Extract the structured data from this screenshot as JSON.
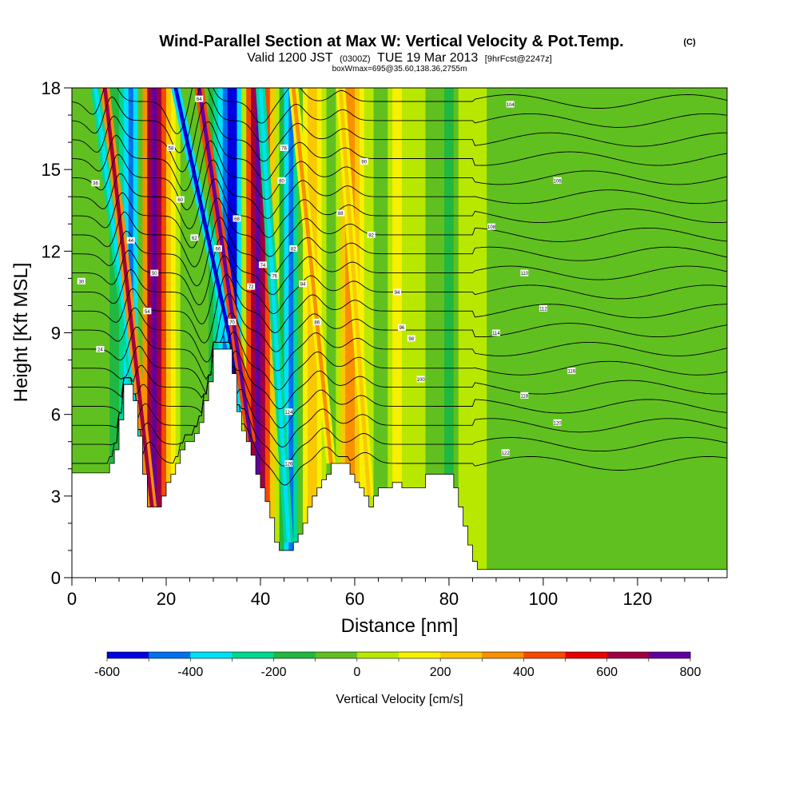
{
  "chart_data": {
    "type": "heatmap",
    "title": {
      "main": "Wind-Parallel Section at Max W: Vertical Velocity & Pot.Temp.",
      "copyright": "(C)"
    },
    "subtitle": {
      "valid_part1": "Valid 1200 JST",
      "valid_z": "(0300Z)",
      "valid_part2": "TUE 19 Mar 2013",
      "forecast": "[9hrFcst@2247z]"
    },
    "box_info": "boxWmax=695@35.60,138.36,2755m",
    "xlabel": "Distance [nm]",
    "ylabel": "Height [Kft MSL]",
    "xlim": [
      0,
      139
    ],
    "ylim": [
      0,
      18
    ],
    "x_ticks": [
      "0",
      "20",
      "40",
      "60",
      "80",
      "100",
      "120"
    ],
    "y_ticks": [
      "0",
      "3",
      "6",
      "9",
      "12",
      "15",
      "18"
    ],
    "colorbar": {
      "label": "Vertical Velocity [cm/s]",
      "ticks": [
        "-600",
        "-400",
        "-200",
        "0",
        "200",
        "400",
        "600",
        "800"
      ],
      "bounds": [
        -600,
        -500,
        -400,
        -300,
        -200,
        -100,
        0,
        100,
        200,
        300,
        400,
        500,
        600,
        700,
        800
      ],
      "colors": [
        "#0000e0",
        "#0070f0",
        "#00e0f8",
        "#00d890",
        "#20b840",
        "#60c020",
        "#b8e800",
        "#f8f000",
        "#f8c800",
        "#f89000",
        "#f84800",
        "#e80000",
        "#a00040",
        "#6000a0"
      ]
    },
    "columns": [
      {
        "x": 0,
        "terrain": 3.85,
        "w": -100
      },
      {
        "x": 2,
        "terrain": 3.85,
        "w": -100
      },
      {
        "x": 4,
        "terrain": 3.85,
        "w": -100
      },
      {
        "x": 6,
        "terrain": 3.85,
        "w": -100
      },
      {
        "x": 8,
        "terrain": 4.2,
        "w": -200
      },
      {
        "x": 9,
        "terrain": 4.7,
        "w": -200
      },
      {
        "x": 10,
        "terrain": 5.8,
        "w": -300
      },
      {
        "x": 11,
        "terrain": 7.1,
        "w": -400
      },
      {
        "x": 12,
        "terrain": 7.1,
        "w": -500
      },
      {
        "x": 13,
        "terrain": 6.5,
        "w": -400
      },
      {
        "x": 14,
        "terrain": 5.2,
        "w": -100
      },
      {
        "x": 15,
        "terrain": 3.8,
        "w": 300
      },
      {
        "x": 16,
        "terrain": 2.6,
        "w": 600
      },
      {
        "x": 17,
        "terrain": 2.6,
        "w": 700
      },
      {
        "x": 18,
        "terrain": 2.6,
        "w": 600
      },
      {
        "x": 19,
        "terrain": 3.0,
        "w": 400
      },
      {
        "x": 20,
        "terrain": 3.5,
        "w": 200
      },
      {
        "x": 21,
        "terrain": 3.8,
        "w": 100
      },
      {
        "x": 22,
        "terrain": 4.2,
        "w": 0
      },
      {
        "x": 23,
        "terrain": 4.7,
        "w": -100
      },
      {
        "x": 24,
        "terrain": 5.0,
        "w": -100
      },
      {
        "x": 25,
        "terrain": 5.0,
        "w": -100
      },
      {
        "x": 26,
        "terrain": 5.3,
        "w": -100
      },
      {
        "x": 27,
        "terrain": 5.7,
        "w": -100
      },
      {
        "x": 28,
        "terrain": 6.5,
        "w": -100
      },
      {
        "x": 29,
        "terrain": 7.2,
        "w": -200
      },
      {
        "x": 30,
        "terrain": 8.4,
        "w": -300
      },
      {
        "x": 31,
        "terrain": 8.4,
        "w": -400
      },
      {
        "x": 32,
        "terrain": 8.4,
        "w": -500
      },
      {
        "x": 33,
        "terrain": 8.4,
        "w": -600
      },
      {
        "x": 34,
        "terrain": 7.5,
        "w": -600
      },
      {
        "x": 35,
        "terrain": 6.1,
        "w": -400
      },
      {
        "x": 36,
        "terrain": 5.4,
        "w": 0
      },
      {
        "x": 37,
        "terrain": 5.0,
        "w": 400
      },
      {
        "x": 38,
        "terrain": 4.5,
        "w": 600
      },
      {
        "x": 39,
        "terrain": 3.8,
        "w": 700
      },
      {
        "x": 40,
        "terrain": 3.3,
        "w": 600
      },
      {
        "x": 41,
        "terrain": 2.8,
        "w": 400
      },
      {
        "x": 42,
        "terrain": 2.2,
        "w": 200
      },
      {
        "x": 43,
        "terrain": 1.3,
        "w": 0
      },
      {
        "x": 44,
        "terrain": 1.0,
        "w": -200
      },
      {
        "x": 45,
        "terrain": 1.0,
        "w": -400
      },
      {
        "x": 46,
        "terrain": 1.0,
        "w": -500
      },
      {
        "x": 47,
        "terrain": 1.3,
        "w": -300
      },
      {
        "x": 48,
        "terrain": 1.6,
        "w": -100
      },
      {
        "x": 49,
        "terrain": 2.0,
        "w": 100
      },
      {
        "x": 50,
        "terrain": 2.6,
        "w": 200
      },
      {
        "x": 51,
        "terrain": 3.0,
        "w": 200
      },
      {
        "x": 52,
        "terrain": 3.3,
        "w": 100
      },
      {
        "x": 53,
        "terrain": 3.6,
        "w": 0
      },
      {
        "x": 54,
        "terrain": 3.8,
        "w": -100
      },
      {
        "x": 55,
        "terrain": 4.2,
        "w": -100
      },
      {
        "x": 56,
        "terrain": 4.2,
        "w": 0
      },
      {
        "x": 57,
        "terrain": 4.2,
        "w": 200
      },
      {
        "x": 58,
        "terrain": 4.2,
        "w": 300
      },
      {
        "x": 59,
        "terrain": 3.8,
        "w": 300
      },
      {
        "x": 60,
        "terrain": 3.5,
        "w": 200
      },
      {
        "x": 61,
        "terrain": 3.3,
        "w": 100
      },
      {
        "x": 62,
        "terrain": 3.0,
        "w": 0
      },
      {
        "x": 63,
        "terrain": 2.6,
        "w": 0
      },
      {
        "x": 64,
        "terrain": 3.0,
        "w": -100
      },
      {
        "x": 65,
        "terrain": 3.3,
        "w": -100
      },
      {
        "x": 66,
        "terrain": 3.3,
        "w": -100
      },
      {
        "x": 67,
        "terrain": 3.3,
        "w": 0
      },
      {
        "x": 68,
        "terrain": 3.5,
        "w": 100
      },
      {
        "x": 69,
        "terrain": 3.5,
        "w": 100
      },
      {
        "x": 70,
        "terrain": 3.3,
        "w": 0
      },
      {
        "x": 72,
        "terrain": 3.3,
        "w": 0
      },
      {
        "x": 74,
        "terrain": 3.3,
        "w": 0
      },
      {
        "x": 75,
        "terrain": 3.8,
        "w": -100
      },
      {
        "x": 77,
        "terrain": 3.8,
        "w": -100
      },
      {
        "x": 79,
        "terrain": 3.8,
        "w": -200
      },
      {
        "x": 80,
        "terrain": 3.8,
        "w": -200
      },
      {
        "x": 81,
        "terrain": 3.3,
        "w": -100
      },
      {
        "x": 82,
        "terrain": 2.6,
        "w": 0
      },
      {
        "x": 83,
        "terrain": 1.9,
        "w": 0
      },
      {
        "x": 84,
        "terrain": 1.2,
        "w": 0
      },
      {
        "x": 85,
        "terrain": 0.6,
        "w": 0
      },
      {
        "x": 86,
        "terrain": 0.3,
        "w": 0
      },
      {
        "x": 88,
        "terrain": 0.3,
        "w": -100
      },
      {
        "x": 90,
        "terrain": 0.3,
        "w": -100
      },
      {
        "x": 92,
        "terrain": 0.3,
        "w": -100
      },
      {
        "x": 94,
        "terrain": 0.3,
        "w": -100
      },
      {
        "x": 96,
        "terrain": 0.3,
        "w": -100
      },
      {
        "x": 98,
        "terrain": 0.3,
        "w": -100
      },
      {
        "x": 100,
        "terrain": 0.3,
        "w": -100
      },
      {
        "x": 102,
        "terrain": 0.3,
        "w": -100
      },
      {
        "x": 104,
        "terrain": 0.3,
        "w": -100
      },
      {
        "x": 106,
        "terrain": 0.3,
        "w": -100
      },
      {
        "x": 108,
        "terrain": 0.3,
        "w": -100
      },
      {
        "x": 110,
        "terrain": 0.3,
        "w": -100
      },
      {
        "x": 112,
        "terrain": 0.3,
        "w": -100
      },
      {
        "x": 114,
        "terrain": 0.3,
        "w": -100
      },
      {
        "x": 116,
        "terrain": 0.3,
        "w": -100
      },
      {
        "x": 118,
        "terrain": 0.3,
        "w": -100
      },
      {
        "x": 120,
        "terrain": 0.3,
        "w": -100
      },
      {
        "x": 122,
        "terrain": 0.3,
        "w": -100
      },
      {
        "x": 124,
        "terrain": 0.3,
        "w": -100
      },
      {
        "x": 126,
        "terrain": 0.3,
        "w": -100
      },
      {
        "x": 128,
        "terrain": 0.3,
        "w": -100
      },
      {
        "x": 130,
        "terrain": 0.3,
        "w": -100
      },
      {
        "x": 132,
        "terrain": 0.3,
        "w": -100
      },
      {
        "x": 134,
        "terrain": 0.3,
        "w": -100
      },
      {
        "x": 136,
        "terrain": 0.3,
        "w": -100
      },
      {
        "x": 138,
        "terrain": 0.3,
        "w": -100
      }
    ],
    "updraft_bands": [
      {
        "x_base": 15.5,
        "x_top": 5.0,
        "w": -400
      },
      {
        "x_base": 17.0,
        "x_top": 7.0,
        "w": 600
      },
      {
        "x_base": 34.0,
        "x_top": 22.0,
        "w": -600
      },
      {
        "x_base": 38.0,
        "x_top": 27.0,
        "w": 700
      },
      {
        "x_base": 46.0,
        "x_top": 40.0,
        "w": -400
      },
      {
        "x_base": 55.0,
        "x_top": 47.0,
        "w": 300
      },
      {
        "x_base": 63.0,
        "x_top": 57.0,
        "w": 200
      }
    ],
    "isentropes": [
      {
        "base": 4.2
      },
      {
        "base": 4.9
      },
      {
        "base": 5.6
      },
      {
        "base": 6.3
      },
      {
        "base": 7.0
      },
      {
        "base": 7.7
      },
      {
        "base": 8.4
      },
      {
        "base": 9.1
      },
      {
        "base": 9.8
      },
      {
        "base": 10.5
      },
      {
        "base": 11.2
      },
      {
        "base": 11.9
      },
      {
        "base": 12.6
      },
      {
        "base": 13.3
      },
      {
        "base": 14.0
      },
      {
        "base": 14.7
      },
      {
        "base": 15.4
      },
      {
        "base": 16.1
      },
      {
        "base": 16.8
      },
      {
        "base": 17.5
      }
    ],
    "contour_labels": [
      {
        "x": 6,
        "y": 8.4,
        "text": "24"
      },
      {
        "x": 2,
        "y": 10.9,
        "text": "30"
      },
      {
        "x": 5,
        "y": 14.5,
        "text": "36"
      },
      {
        "x": 12.5,
        "y": 12.4,
        "text": "44"
      },
      {
        "x": 17.5,
        "y": 11.2,
        "text": "50"
      },
      {
        "x": 16,
        "y": 9.8,
        "text": "54"
      },
      {
        "x": 21,
        "y": 15.8,
        "text": "58"
      },
      {
        "x": 23,
        "y": 13.9,
        "text": "60"
      },
      {
        "x": 26,
        "y": 12.5,
        "text": "62"
      },
      {
        "x": 27,
        "y": 17.6,
        "text": "64"
      },
      {
        "x": 31,
        "y": 12.1,
        "text": "66"
      },
      {
        "x": 35,
        "y": 13.2,
        "text": "68"
      },
      {
        "x": 34,
        "y": 9.4,
        "text": "70"
      },
      {
        "x": 38,
        "y": 10.7,
        "text": "72"
      },
      {
        "x": 40.5,
        "y": 11.5,
        "text": "74"
      },
      {
        "x": 43,
        "y": 11.1,
        "text": "76"
      },
      {
        "x": 45,
        "y": 15.8,
        "text": "78"
      },
      {
        "x": 44.5,
        "y": 14.6,
        "text": "80"
      },
      {
        "x": 47,
        "y": 12.1,
        "text": "82"
      },
      {
        "x": 49,
        "y": 10.8,
        "text": "84"
      },
      {
        "x": 52,
        "y": 9.4,
        "text": "86"
      },
      {
        "x": 57,
        "y": 13.4,
        "text": "88"
      },
      {
        "x": 62,
        "y": 15.3,
        "text": "90"
      },
      {
        "x": 63.5,
        "y": 12.6,
        "text": "92"
      },
      {
        "x": 69,
        "y": 10.5,
        "text": "94"
      },
      {
        "x": 70,
        "y": 9.2,
        "text": "96"
      },
      {
        "x": 72,
        "y": 8.8,
        "text": "98"
      },
      {
        "x": 74,
        "y": 7.3,
        "text": "100"
      },
      {
        "x": 93,
        "y": 17.4,
        "text": "104"
      },
      {
        "x": 103,
        "y": 14.6,
        "text": "106"
      },
      {
        "x": 89,
        "y": 12.9,
        "text": "108"
      },
      {
        "x": 96,
        "y": 11.2,
        "text": "110"
      },
      {
        "x": 100,
        "y": 9.9,
        "text": "112"
      },
      {
        "x": 90,
        "y": 9.0,
        "text": "114"
      },
      {
        "x": 106,
        "y": 7.6,
        "text": "116"
      },
      {
        "x": 96,
        "y": 6.7,
        "text": "118"
      },
      {
        "x": 103,
        "y": 5.7,
        "text": "120"
      },
      {
        "x": 92,
        "y": 4.6,
        "text": "122"
      },
      {
        "x": 46,
        "y": 6.1,
        "text": "124"
      },
      {
        "x": 46,
        "y": 4.2,
        "text": "126"
      }
    ]
  }
}
